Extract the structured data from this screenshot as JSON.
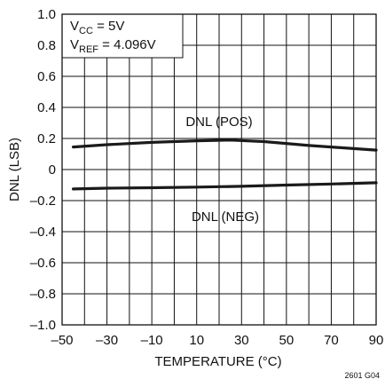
{
  "chart_data": {
    "type": "line",
    "xlabel": "TEMPERATURE (°C)",
    "ylabel": "DNL (LSB)",
    "xlim": [
      -50,
      90
    ],
    "ylim": [
      -1.0,
      1.0
    ],
    "x_ticks": [
      -50,
      -30,
      -10,
      10,
      30,
      50,
      70,
      90
    ],
    "x_tick_labels": [
      "–50",
      "–30",
      "–10",
      "10",
      "30",
      "50",
      "70",
      "90"
    ],
    "y_ticks": [
      1.0,
      0.8,
      0.6,
      0.4,
      0.2,
      0,
      -0.2,
      -0.4,
      -0.6,
      -0.8,
      -1.0
    ],
    "y_tick_labels": [
      "1.0",
      "0.8",
      "0.6",
      "0.4",
      "0.2",
      "0",
      "–0.2",
      "–0.4",
      "–0.6",
      "–0.8",
      "–1.0"
    ],
    "grid": true,
    "series": [
      {
        "name": "DNL (POS)",
        "x": [
          -45,
          -30,
          -10,
          10,
          25,
          40,
          60,
          75,
          90
        ],
        "y": [
          0.145,
          0.16,
          0.175,
          0.185,
          0.19,
          0.18,
          0.155,
          0.14,
          0.125
        ]
      },
      {
        "name": "DNL (NEG)",
        "x": [
          -45,
          -30,
          -10,
          10,
          30,
          50,
          70,
          90
        ],
        "y": [
          -0.125,
          -0.12,
          -0.117,
          -0.113,
          -0.108,
          -0.1,
          -0.093,
          -0.085
        ]
      }
    ],
    "annotations": {
      "condition_1_main": "V",
      "condition_1_sub": "CC",
      "condition_1_rest": " = 5V",
      "condition_2_main": "V",
      "condition_2_sub": "REF",
      "condition_2_rest": " = 4.096V"
    },
    "figure_id": "2601 G04",
    "line_color": "#1a1a1a",
    "grid_color": "#111111"
  }
}
